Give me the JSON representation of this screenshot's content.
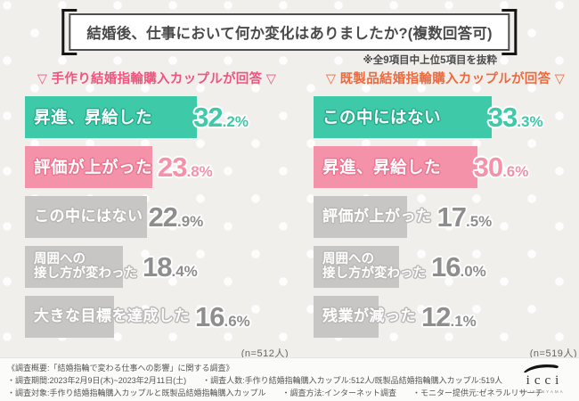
{
  "title": "結婚後、仕事において何か変化はありましたか?(複数回答可)",
  "note": "※全9項目中上位5項目を抜粋",
  "colors": {
    "teal": "#3ec9a9",
    "pink": "#f492a9",
    "gray": "#c7c6c4",
    "gray_value": "#8e8e8e",
    "left_header": "#f0547d",
    "right_header": "#ee6a3e"
  },
  "chart_data": [
    {
      "type": "bar",
      "title": "▽ 手作り結婚指輪購入カップルが回答 ▽",
      "header_color": "#f0547d",
      "sample": "(n=512人)",
      "categories": [
        "昇進、昇給した",
        "評価が上がった",
        "この中にはない",
        "周囲への\n接し方が変わった",
        "大きな目標を達成した"
      ],
      "values": [
        32.2,
        23.8,
        22.9,
        18.4,
        16.6
      ],
      "bar_colors": [
        "teal",
        "pink",
        "gray",
        "gray",
        "gray"
      ],
      "xlim": [
        0,
        50
      ],
      "value_suffix": "%"
    },
    {
      "type": "bar",
      "title": "▽ 既製品結婚指輪購入カップルが回答 ▽",
      "header_color": "#ee6a3e",
      "sample": "(n=519人)",
      "categories": [
        "この中にはない",
        "昇進、昇給した",
        "評価が上がった",
        "周囲への\n接し方が変わった",
        "残業が減った"
      ],
      "values": [
        33.3,
        30.6,
        17.5,
        16.0,
        12.1
      ],
      "bar_colors": [
        "teal",
        "pink",
        "gray",
        "gray",
        "gray"
      ],
      "xlim": [
        0,
        50
      ],
      "value_suffix": "%"
    }
  ],
  "footer": {
    "line1": "《調査概要:「結婚指輪で変わる仕事への影響」に関する調査》",
    "line2": "・調査期間:2023年2月9日(木)~2023年2月11日(土)　　・調査人数:手作り結婚指輪購入カップル:512人/既製品結婚指輪購入カップル:519人",
    "line3": "・調査対象:手作り結婚指輪購入カップルと既製品結婚指輪購入カップル　　・調査方法:インターネット調査　　・モニター提供元:ゼネラルリサーチ",
    "logo": "icci",
    "logo_sub": "DAIKANYAMA"
  }
}
